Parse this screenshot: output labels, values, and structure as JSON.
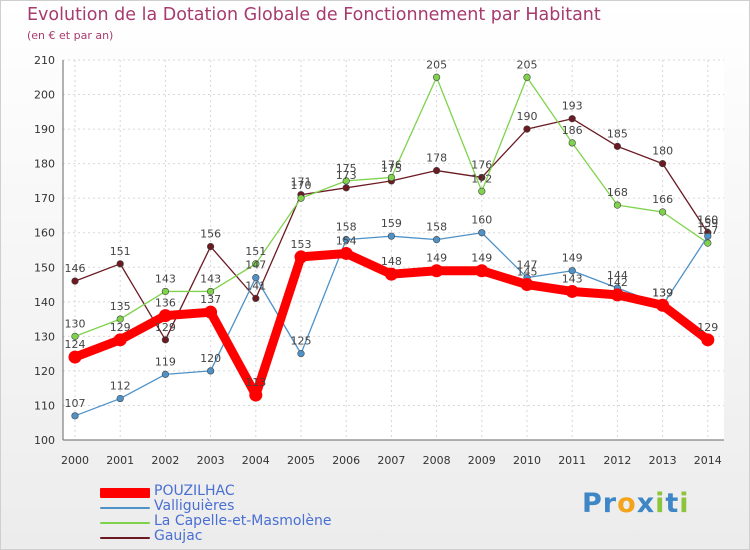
{
  "chart_data": {
    "type": "line",
    "title": "Evolution de la Dotation Globale de Fonctionnement par Habitant",
    "subtitle": "(en € et par an)",
    "x": [
      "2000",
      "2001",
      "2002",
      "2003",
      "2004",
      "2005",
      "2006",
      "2007",
      "2008",
      "2009",
      "2010",
      "2011",
      "2012",
      "2013",
      "2014"
    ],
    "ylim": [
      100,
      210
    ],
    "yticks": [
      100,
      110,
      120,
      130,
      140,
      150,
      160,
      170,
      180,
      190,
      200,
      210
    ],
    "grid": true,
    "legend_position": "bottom-left",
    "series": [
      {
        "name": "POUZILHAC",
        "color": "#ff0000",
        "values": [
          124,
          129,
          136,
          137,
          113,
          153,
          154,
          148,
          149,
          149,
          145,
          143,
          142,
          139,
          129
        ]
      },
      {
        "name": "Valliguières",
        "color": "#4e92c8",
        "values": [
          107,
          112,
          119,
          120,
          147,
          125,
          158,
          159,
          158,
          160,
          147,
          149,
          144,
          139,
          159
        ]
      },
      {
        "name": "La Capelle-et-Masmolène",
        "color": "#7fd34c",
        "values": [
          130,
          135,
          143,
          143,
          151,
          170,
          175,
          176,
          205,
          172,
          205,
          186,
          168,
          166,
          157
        ]
      },
      {
        "name": "Gaujac",
        "color": "#6b1a22",
        "values": [
          146,
          151,
          129,
          156,
          141,
          171,
          173,
          175,
          178,
          176,
          190,
          193,
          185,
          180,
          160
        ]
      }
    ]
  },
  "logo": {
    "text": "Proxiti",
    "letters": [
      "P",
      "r",
      "o",
      "x",
      "i",
      "t",
      "i"
    ],
    "letter_colors": [
      "#3f86c6",
      "#3f86c6",
      "#f2a51c",
      "#3f86c6",
      "#8cc43c",
      "#3f86c6",
      "#8cc43c"
    ]
  }
}
